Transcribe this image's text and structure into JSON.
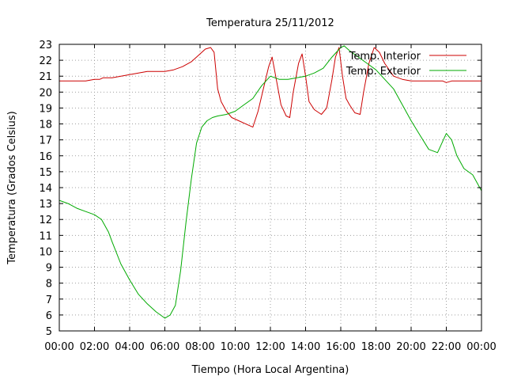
{
  "chart_data": {
    "type": "line",
    "title": "Temperatura 25/11/2012",
    "xlabel": "Tiempo (Hora Local Argentina)",
    "ylabel": "Temperatura (Grados Celsius)",
    "xlim": [
      0,
      24
    ],
    "ylim": [
      5,
      23
    ],
    "x_ticks": [
      0,
      2,
      4,
      6,
      8,
      10,
      12,
      14,
      16,
      18,
      20,
      22,
      24
    ],
    "x_tick_labels": [
      "00:00",
      "02:00",
      "04:00",
      "06:00",
      "08:00",
      "10:00",
      "12:00",
      "14:00",
      "16:00",
      "18:00",
      "20:00",
      "22:00",
      "00:00"
    ],
    "y_ticks": [
      5,
      6,
      7,
      8,
      9,
      10,
      11,
      12,
      13,
      14,
      15,
      16,
      17,
      18,
      19,
      20,
      21,
      22,
      23
    ],
    "grid": true,
    "legend_position": "top-right",
    "series": [
      {
        "name": "Temp. Interior",
        "color": "#cc0000",
        "x": [
          0,
          1.5,
          2.0,
          2.3,
          2.5,
          3.0,
          3.5,
          4.0,
          4.5,
          5.0,
          5.5,
          6.0,
          6.5,
          7.0,
          7.5,
          8.0,
          8.3,
          8.6,
          8.8,
          9.0,
          9.2,
          9.5,
          9.8,
          10.2,
          10.6,
          11.0,
          11.3,
          11.6,
          11.9,
          12.1,
          12.3,
          12.6,
          12.9,
          13.1,
          13.3,
          13.6,
          13.8,
          14.0,
          14.2,
          14.5,
          14.9,
          15.2,
          15.5,
          15.7,
          15.9,
          16.1,
          16.3,
          16.5,
          16.8,
          17.1,
          17.3,
          17.6,
          17.9,
          18.2,
          18.5,
          19.0,
          19.5,
          20.0,
          21.0,
          21.8,
          22.0,
          22.3,
          24
        ],
        "values": [
          20.7,
          20.7,
          20.8,
          20.8,
          20.9,
          20.9,
          21.0,
          21.1,
          21.2,
          21.3,
          21.3,
          21.3,
          21.4,
          21.6,
          21.9,
          22.4,
          22.7,
          22.8,
          22.5,
          20.2,
          19.4,
          18.8,
          18.4,
          18.2,
          18.0,
          17.8,
          18.8,
          20.2,
          21.6,
          22.2,
          21.0,
          19.2,
          18.5,
          18.4,
          20.0,
          21.8,
          22.4,
          21.0,
          19.4,
          18.9,
          18.6,
          19.0,
          20.8,
          22.2,
          22.8,
          21.0,
          19.6,
          19.2,
          18.7,
          18.6,
          20.0,
          21.8,
          22.8,
          22.5,
          21.8,
          21.0,
          20.8,
          20.7,
          20.7,
          20.7,
          20.6,
          20.7,
          20.7
        ]
      },
      {
        "name": "Temp. Exterior",
        "color": "#00aa00",
        "x": [
          0,
          0.5,
          1.0,
          1.5,
          2.0,
          2.4,
          2.8,
          3.0,
          3.5,
          4.0,
          4.5,
          5.0,
          5.5,
          6.0,
          6.3,
          6.6,
          6.9,
          7.2,
          7.5,
          7.8,
          8.1,
          8.4,
          8.7,
          9.0,
          9.5,
          10.0,
          10.5,
          11.0,
          11.5,
          12.0,
          12.5,
          13.0,
          13.5,
          14.0,
          14.5,
          15.0,
          15.5,
          16.0,
          16.2,
          16.5,
          17.0,
          17.5,
          18.0,
          18.5,
          19.0,
          19.5,
          20.0,
          20.5,
          21.0,
          21.5,
          22.0,
          22.3,
          22.6,
          23.0,
          23.5,
          24
        ],
        "values": [
          13.2,
          13.0,
          12.7,
          12.5,
          12.3,
          12.0,
          11.2,
          10.6,
          9.2,
          8.2,
          7.3,
          6.7,
          6.2,
          5.8,
          6.0,
          6.6,
          8.8,
          11.8,
          14.5,
          16.8,
          17.8,
          18.2,
          18.4,
          18.5,
          18.6,
          18.8,
          19.2,
          19.6,
          20.4,
          21.0,
          20.8,
          20.8,
          20.9,
          21.0,
          21.2,
          21.5,
          22.2,
          22.8,
          22.9,
          22.6,
          22.2,
          21.8,
          21.4,
          20.8,
          20.2,
          19.2,
          18.2,
          17.3,
          16.4,
          16.2,
          17.4,
          17.0,
          16.0,
          15.2,
          14.8,
          13.8
        ]
      }
    ]
  }
}
